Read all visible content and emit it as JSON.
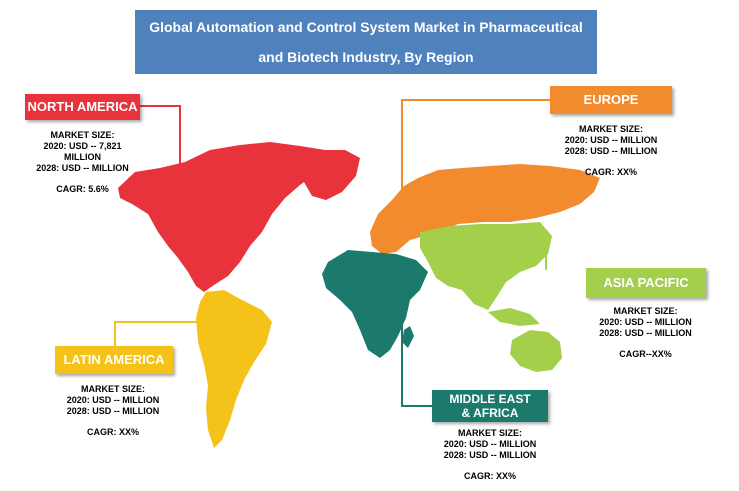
{
  "title": {
    "line1": "Global Automation and Control System Market in Pharmaceutical",
    "line2": "and Biotech Industry, By Region"
  },
  "regions": {
    "north_america": {
      "label": "NORTH AMERICA",
      "color": "#e8323c",
      "market_size_label": "MARKET SIZE:",
      "line_2020": "2020: USD -- 7,821",
      "line_2020b": "MILLION",
      "line_2028": "2028: USD -- MILLION",
      "cagr": "CAGR: 5.6%"
    },
    "europe": {
      "label": "EUROPE",
      "color": "#f28a2e",
      "market_size_label": "MARKET SIZE:",
      "line_2020": "2020: USD -- MILLION",
      "line_2028": "2028: USD -- MILLION",
      "cagr": "CAGR: XX%"
    },
    "asia_pacific": {
      "label": "ASIA PACIFIC",
      "color": "#a4cf4b",
      "market_size_label": "MARKET SIZE:",
      "line_2020": "2020: USD -- MILLION",
      "line_2028": "2028: USD -- MILLION",
      "cagr": "CAGR--XX%"
    },
    "latin_america": {
      "label": "LATIN AMERICA",
      "color": "#f4c218",
      "market_size_label": "MARKET SIZE:",
      "line_2020": "2020: USD -- MILLION",
      "line_2028": "2028: USD -- MILLION",
      "cagr": "CAGR: XX%"
    },
    "middle_east_africa": {
      "label_line1": "MIDDLE EAST",
      "label_line2": "& AFRICA",
      "color": "#1b7a6c",
      "market_size_label": "MARKET SIZE:",
      "line_2020": "2020: USD -- MILLION",
      "line_2028": "2028: USD -- MILLION",
      "cagr": "CAGR: XX%"
    }
  }
}
